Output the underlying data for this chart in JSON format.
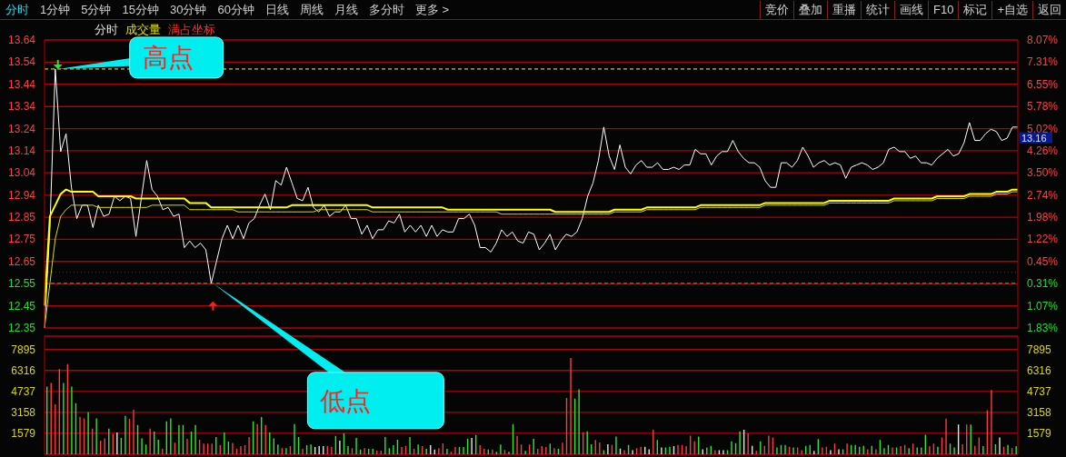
{
  "chart_data": [
    {
      "type": "other",
      "annotations": [
        "分时",
        "1分钟",
        "5分钟",
        "15分钟",
        "30分钟",
        "60分钟",
        "日线",
        "周线",
        "月线",
        "多分时",
        "更多 >"
      ]
    },
    {
      "type": "other",
      "annotations": [
        "竞价",
        "叠加",
        "重播",
        "统计",
        "画线",
        "F10",
        "标记",
        "+自选",
        "返回"
      ]
    },
    {
      "type": "line",
      "title": "分时",
      "annotations": [
        "成交量",
        "满占坐标",
        "高点",
        "低点",
        "13.16"
      ],
      "categories": [
        null,
        null,
        null,
        null,
        null,
        null,
        null,
        null,
        null,
        null,
        null,
        null,
        null,
        null,
        null,
        null,
        null,
        null,
        null,
        null,
        null,
        null,
        null,
        null,
        null,
        null,
        null,
        null,
        null,
        null,
        null,
        null,
        null,
        null,
        null,
        null,
        null,
        null,
        null,
        null,
        null,
        null,
        null,
        null,
        null,
        null,
        null,
        null,
        null,
        null,
        null,
        null,
        null,
        null,
        null,
        null,
        null,
        null,
        null,
        null,
        null,
        null,
        null,
        null,
        null,
        null,
        null,
        null,
        null,
        null,
        null,
        null,
        null,
        null,
        null,
        null,
        null,
        null,
        null,
        null,
        null,
        null,
        null,
        null,
        null,
        null,
        null,
        null,
        null,
        null,
        null,
        null,
        null,
        null,
        null,
        null,
        null,
        null,
        null,
        null,
        null,
        null,
        null,
        null,
        null,
        null,
        null,
        null,
        null,
        null,
        null,
        null,
        null,
        null,
        null,
        null,
        null,
        null,
        null,
        null,
        null,
        null,
        null,
        null,
        null,
        null,
        null,
        null,
        null,
        null,
        null,
        null,
        null,
        null,
        null,
        null,
        null,
        null,
        null,
        null,
        null,
        null,
        null,
        null,
        null,
        null,
        null,
        null,
        null,
        null,
        null,
        null,
        null,
        null,
        null,
        null,
        null,
        null,
        null,
        null,
        null,
        null,
        null,
        null,
        null,
        null,
        null,
        null,
        null,
        null,
        null,
        null,
        null,
        null,
        null,
        null,
        null,
        null,
        null,
        null,
        null,
        null
      ],
      "series": [
        {
          "type": "line",
          "color": "#ffffff",
          "values": [
            12.35,
            12.8,
            13.51,
            13.14,
            13.22,
            12.98,
            12.84,
            12.9,
            12.9,
            12.8,
            12.9,
            12.85,
            12.86,
            12.94,
            12.92,
            12.94,
            12.93,
            12.76,
            12.93,
            13.1,
            12.97,
            12.94,
            12.88,
            12.89,
            12.85,
            12.86,
            12.71,
            12.74,
            12.71,
            12.73,
            12.7,
            12.55,
            12.65,
            12.75,
            12.81,
            12.75,
            12.81,
            12.75,
            12.82,
            12.84,
            12.9,
            12.95,
            12.88,
            13.01,
            12.99,
            13.07,
            13.0,
            12.93,
            12.92,
            12.98,
            12.89,
            12.87,
            12.9,
            12.85,
            12.87,
            12.87,
            12.9,
            12.84,
            12.84,
            12.77,
            12.81,
            12.75,
            12.79,
            12.79,
            12.83,
            12.82,
            12.86,
            12.78,
            12.81,
            12.78,
            12.81,
            12.76,
            12.81,
            12.76,
            12.79,
            12.78,
            12.78,
            12.84,
            12.84,
            12.86,
            12.81,
            12.71,
            12.71,
            12.69,
            12.73,
            12.79,
            12.76,
            12.78,
            12.74,
            12.73,
            12.78,
            12.77,
            12.7,
            12.73,
            12.77,
            12.7,
            12.74,
            12.77,
            12.76,
            12.78,
            12.84,
            12.94,
            13.0,
            13.1,
            13.25,
            13.12,
            13.06,
            13.17,
            13.07,
            13.04,
            13.08,
            13.1,
            13.07,
            13.07,
            13.09,
            13.06,
            13.06,
            13.07,
            13.06,
            13.08,
            13.08,
            13.15,
            13.13,
            13.13,
            13.08,
            13.12,
            13.14,
            13.14,
            13.19,
            13.14,
            13.11,
            13.09,
            13.09,
            13.07,
            13.01,
            12.98,
            12.98,
            13.09,
            13.09,
            13.07,
            13.1,
            13.16,
            13.12,
            13.07,
            13.09,
            13.1,
            13.08,
            13.09,
            13.08,
            13.02,
            13.07,
            13.08,
            13.09,
            13.08,
            13.06,
            13.07,
            13.09,
            13.15,
            13.16,
            13.14,
            13.14,
            13.11,
            13.12,
            13.09,
            13.09,
            13.08,
            13.11,
            13.13,
            13.15,
            13.12,
            13.13,
            13.18,
            13.27,
            13.19,
            13.19,
            13.22,
            13.24,
            13.23,
            13.19,
            13.2,
            13.25,
            13.25
          ]
        },
        {
          "type": "line",
          "color": "#ffff00",
          "values": [
            12.45,
            12.85,
            12.9,
            12.95,
            12.97,
            12.96,
            12.96,
            12.96,
            12.96,
            12.96,
            12.94,
            12.94,
            12.94,
            12.94,
            12.94,
            12.94,
            12.94,
            12.93,
            12.93,
            12.93,
            12.93,
            12.93,
            12.93,
            12.93,
            12.93,
            12.93,
            12.93,
            12.91,
            12.91,
            12.91,
            12.91,
            12.89,
            12.89,
            12.89,
            12.89,
            12.89,
            12.89,
            12.89,
            12.89,
            12.89,
            12.89,
            12.89,
            12.89,
            12.89,
            12.89,
            12.89,
            12.9,
            12.9,
            12.9,
            12.9,
            12.9,
            12.9,
            12.9,
            12.9,
            12.9,
            12.9,
            12.9,
            12.9,
            12.9,
            12.9,
            12.9,
            12.89,
            12.89,
            12.89,
            12.89,
            12.89,
            12.89,
            12.89,
            12.89,
            12.89,
            12.89,
            12.89,
            12.89,
            12.89,
            12.89,
            12.88,
            12.88,
            12.88,
            12.88,
            12.88,
            12.88,
            12.88,
            12.88,
            12.88,
            12.88,
            12.88,
            12.88,
            12.88,
            12.88,
            12.88,
            12.88,
            12.88,
            12.88,
            12.88,
            12.88,
            12.87,
            12.87,
            12.87,
            12.87,
            12.87,
            12.87,
            12.87,
            12.87,
            12.87,
            12.87,
            12.87,
            12.88,
            12.88,
            12.88,
            12.88,
            12.88,
            12.88,
            12.89,
            12.89,
            12.89,
            12.89,
            12.89,
            12.89,
            12.89,
            12.89,
            12.89,
            12.89,
            12.9,
            12.9,
            12.9,
            12.9,
            12.9,
            12.9,
            12.9,
            12.9,
            12.9,
            12.9,
            12.9,
            12.9,
            12.91,
            12.91,
            12.91,
            12.91,
            12.91,
            12.91,
            12.91,
            12.91,
            12.91,
            12.91,
            12.91,
            12.91,
            12.92,
            12.92,
            12.92,
            12.92,
            12.92,
            12.92,
            12.92,
            12.92,
            12.92,
            12.92,
            12.92,
            12.92,
            12.93,
            12.93,
            12.93,
            12.93,
            12.93,
            12.93,
            12.93,
            12.93,
            12.94,
            12.94,
            12.94,
            12.94,
            12.94,
            12.94,
            12.95,
            12.95,
            12.95,
            12.95,
            12.95,
            12.96,
            12.96,
            12.96,
            12.97,
            12.97
          ]
        },
        {
          "type": "line",
          "color": "#dddd00",
          "values": [
            12.35,
            12.55,
            12.75,
            12.85,
            12.88,
            12.9,
            12.9,
            12.9,
            12.9,
            12.9,
            12.89,
            12.89,
            12.89,
            12.89,
            12.89,
            12.89,
            12.89,
            12.89,
            12.89,
            12.89,
            12.9,
            12.9,
            12.9,
            12.9,
            12.9,
            12.9,
            12.9,
            12.88,
            12.88,
            12.88,
            12.88,
            12.88,
            12.88,
            12.88,
            12.88,
            12.88,
            12.87,
            12.87,
            12.87,
            12.87,
            12.87,
            12.87,
            12.87,
            12.87,
            12.87,
            12.87,
            12.87,
            12.87,
            12.87,
            12.87,
            12.87,
            12.88,
            12.88,
            12.88,
            12.88,
            12.88,
            12.88,
            12.88,
            12.88,
            12.88,
            12.88,
            12.87,
            12.87,
            12.87,
            12.87,
            12.87,
            12.87,
            12.87,
            12.87,
            12.87,
            12.87,
            12.87,
            12.87,
            12.87,
            12.87,
            12.87,
            12.87,
            12.87,
            12.87,
            12.87,
            12.87,
            12.87,
            12.87,
            12.87,
            12.87,
            12.86,
            12.86,
            12.86,
            12.86,
            12.86,
            12.86,
            12.86,
            12.86,
            12.86,
            12.86,
            12.86,
            12.86,
            12.86,
            12.86,
            12.86,
            12.86,
            12.86,
            12.86,
            12.86,
            12.86,
            12.86,
            12.87,
            12.87,
            12.87,
            12.87,
            12.87,
            12.87,
            12.88,
            12.88,
            12.88,
            12.88,
            12.88,
            12.88,
            12.88,
            12.88,
            12.88,
            12.88,
            12.89,
            12.89,
            12.89,
            12.89,
            12.89,
            12.89,
            12.89,
            12.89,
            12.89,
            12.89,
            12.89,
            12.89,
            12.9,
            12.9,
            12.9,
            12.9,
            12.9,
            12.9,
            12.9,
            12.9,
            12.9,
            12.9,
            12.9,
            12.9,
            12.91,
            12.91,
            12.91,
            12.91,
            12.91,
            12.91,
            12.91,
            12.91,
            12.91,
            12.91,
            12.91,
            12.91,
            12.92,
            12.92,
            12.92,
            12.92,
            12.92,
            12.92,
            12.92,
            12.92,
            12.93,
            12.93,
            12.93,
            12.93,
            12.93,
            12.93,
            12.94,
            12.94,
            12.94,
            12.94,
            12.94,
            12.95,
            12.95,
            12.95,
            12.96,
            12.96
          ]
        }
      ],
      "ylim": [
        12.35,
        13.64
      ],
      "yticks": [
        {
          "value": 12.35,
          "label": "12.35"
        },
        {
          "value": 12.449,
          "label": "12.45"
        },
        {
          "value": 12.548,
          "label": "12.55"
        },
        {
          "value": 12.648,
          "label": "12.65"
        },
        {
          "value": 12.747,
          "label": "12.75"
        },
        {
          "value": 12.846,
          "label": "12.85"
        },
        {
          "value": 12.945,
          "label": "12.94"
        },
        {
          "value": 13.045,
          "label": "13.04"
        },
        {
          "value": 13.144,
          "label": "13.14"
        },
        {
          "value": 13.243,
          "label": "13.24"
        },
        {
          "value": 13.342,
          "label": "13.34"
        },
        {
          "value": 13.442,
          "label": "13.44"
        },
        {
          "value": 13.541,
          "label": "13.54"
        },
        {
          "value": 13.64,
          "label": "13.64"
        }
      ],
      "y2lim": [
        -1.83,
        8.07
      ],
      "y2ticks": [
        {
          "value": -1.83,
          "label": "1.83%"
        },
        {
          "value": -1.07,
          "label": "1.07%"
        },
        {
          "value": -0.31,
          "label": "0.31%"
        },
        {
          "value": 0.45,
          "label": "0.45%"
        },
        {
          "value": 1.22,
          "label": "1.22%"
        },
        {
          "value": 1.98,
          "label": "1.98%"
        },
        {
          "value": 2.74,
          "label": "2.74%"
        },
        {
          "value": 3.5,
          "label": "3.50%"
        },
        {
          "value": 4.26,
          "label": "4.26%"
        },
        {
          "value": 5.02,
          "label": "5.02%"
        },
        {
          "value": 5.78,
          "label": "5.78%"
        },
        {
          "value": 6.55,
          "label": "6.55%"
        },
        {
          "value": 7.31,
          "label": "7.31%"
        },
        {
          "value": 8.07,
          "label": "8.07%"
        }
      ],
      "ref_lines": [
        {
          "axis": "y",
          "value": 13.51,
          "color": "#ffff00",
          "line_style": "dashed"
        },
        {
          "axis": "y",
          "value": 12.55,
          "color": "#00e000",
          "line_style": "dashed"
        },
        {
          "axis": "y",
          "value": 12.6,
          "color": "#c00000",
          "line_style": "dotted"
        }
      ],
      "grid": "y",
      "tick_labels": "y"
    },
    {
      "type": "bar",
      "categories": [
        null,
        null,
        null,
        null,
        null,
        null,
        null,
        null,
        null,
        null,
        null,
        null,
        null,
        null,
        null,
        null,
        null,
        null,
        null,
        null,
        null,
        null,
        null,
        null,
        null,
        null,
        null,
        null,
        null,
        null,
        null,
        null,
        null,
        null,
        null,
        null,
        null,
        null,
        null,
        null,
        null,
        null,
        null,
        null,
        null,
        null,
        null,
        null,
        null,
        null,
        null,
        null,
        null,
        null,
        null,
        null,
        null,
        null,
        null,
        null,
        null,
        null,
        null,
        null,
        null,
        null,
        null,
        null,
        null,
        null,
        null,
        null,
        null,
        null,
        null,
        null,
        null,
        null,
        null,
        null,
        null,
        null,
        null,
        null,
        null,
        null,
        null,
        null,
        null,
        null,
        null,
        null,
        null,
        null,
        null,
        null,
        null,
        null,
        null,
        null,
        null,
        null,
        null,
        null,
        null,
        null,
        null,
        null,
        null,
        null,
        null,
        null,
        null,
        null,
        null,
        null,
        null,
        null,
        null,
        null,
        null,
        null,
        null,
        null,
        null,
        null,
        null,
        null,
        null,
        null,
        null,
        null,
        null,
        null,
        null,
        null,
        null,
        null,
        null,
        null,
        null,
        null,
        null,
        null,
        null,
        null,
        null,
        null,
        null,
        null,
        null,
        null,
        null,
        null,
        null,
        null,
        null,
        null,
        null,
        null,
        null,
        null,
        null,
        null,
        null,
        null,
        null,
        null,
        null,
        null,
        null,
        null,
        null,
        null,
        null,
        null,
        null,
        null,
        null,
        null,
        null,
        null,
        null,
        null,
        null,
        null,
        null,
        null,
        null,
        null,
        null,
        null,
        null,
        null,
        null,
        null,
        null,
        null,
        null,
        null,
        null,
        null,
        null,
        null,
        null,
        null,
        null,
        null,
        null,
        null,
        null,
        null,
        null,
        null,
        null,
        null,
        null,
        null,
        null,
        null,
        null,
        null,
        null,
        null,
        null,
        null,
        null,
        null,
        null,
        null,
        null,
        null,
        null,
        null,
        null,
        null
      ],
      "values": [
        5100,
        5370,
        3770,
        6410,
        5370,
        6800,
        5100,
        3850,
        2830,
        2700,
        3160,
        1930,
        2700,
        1020,
        1190,
        1930,
        1520,
        1650,
        1240,
        2890,
        2670,
        3350,
        2200,
        1190,
        740,
        1930,
        1710,
        1100,
        410,
        2480,
        2700,
        880,
        2200,
        2200,
        1160,
        1710,
        2200,
        1100,
        800,
        800,
        800,
        1300,
        690,
        1650,
        960,
        850,
        410,
        610,
        690,
        1300,
        2480,
        2280,
        2800,
        2200,
        1650,
        1190,
        740,
        470,
        470,
        610,
        2280,
        1300,
        410,
        690,
        740,
        550,
        610,
        610,
        610,
        550,
        1380,
        1020,
        1570,
        610,
        470,
        1240,
        360,
        470,
        410,
        410,
        280,
        280,
        1300,
        470,
        690,
        1100,
        550,
        630,
        1300,
        410,
        740,
        610,
        410,
        690,
        360,
        470,
        820,
        410,
        190,
        550,
        550,
        550,
        1160,
        1240,
        1460,
        690,
        410,
        360,
        360,
        190,
        740,
        330,
        190,
        2280,
        1380,
        740,
        250,
        740,
        1160,
        410,
        610,
        550,
        800,
        470,
        410,
        880,
        4250,
        7260,
        4200,
        4890,
        1660,
        1730,
        760,
        1070,
        890,
        310,
        760,
        710,
        1330,
        430,
        310,
        710,
        310,
        460,
        560,
        560,
        380,
        1840,
        1070,
        510,
        510,
        560,
        610,
        710,
        710,
        610,
        1400,
        970,
        1330,
        380,
        510,
        640,
        310,
        310,
        310,
        310,
        970,
        840,
        1730,
        1840,
        1580,
        640,
        260,
        970,
        640,
        1400,
        1270,
        510,
        710,
        710,
        560,
        510,
        510,
        310,
        640,
        710,
        260,
        1150,
        510,
        560,
        310,
        810,
        380,
        380,
        810,
        710,
        710,
        560,
        640,
        380,
        640,
        380,
        1070,
        460,
        710,
        510,
        510,
        610,
        710,
        460,
        810,
        510,
        510,
        1480,
        610,
        810,
        560,
        1270,
        2680,
        810,
        510,
        2240,
        760,
        2240,
        2240,
        640,
        1270,
        610,
        3320,
        4850,
        760,
        1270,
        560,
        710,
        460,
        610
      ],
      "colors": [
        "#2ee82e",
        "#ff3c3c",
        "#ff3c3c",
        "#ff3c3c",
        "#2ee82e",
        "#ff3c3c",
        "#2ee82e",
        "#2ee82e",
        "#ff3c3c",
        "#ff3c3c",
        "#2ee82e",
        "#ff3c3c",
        "#2ee82e",
        "#ff3c3c",
        "#ff3c3c",
        "#2ee82e",
        "#ff3c3c",
        "#e6e6e6",
        "#2ee82e",
        "#2ee82e",
        "#ff3c3c",
        "#ff3c3c",
        "#2ee82e",
        "#2ee82e",
        "#2ee82e",
        "#ff3c3c",
        "#2ee82e",
        "#2ee82e",
        "#ff3c3c",
        "#2ee82e",
        "#2ee82e",
        "#ff3c3c",
        "#2ee82e",
        "#2ee82e",
        "#ff3c3c",
        "#2ee82e",
        "#2ee82e",
        "#ff3c3c",
        "#ff3c3c",
        "#ff3c3c",
        "#ff3c3c",
        "#2ee82e",
        "#ff3c3c",
        "#2ee82e",
        "#2ee82e",
        "#ff3c3c",
        "#ff3c3c",
        "#ff3c3c",
        "#ff3c3c",
        "#ff3c3c",
        "#2ee82e",
        "#ff3c3c",
        "#2ee82e",
        "#ff3c3c",
        "#2ee82e",
        "#2ee82e",
        "#2ee82e",
        "#ff3c3c",
        "#2ee82e",
        "#ff3c3c",
        "#2ee82e",
        "#2ee82e",
        "#ff3c3c",
        "#2ee82e",
        "#2ee82e",
        "#e6e6e6",
        "#e6e6e6",
        "#e6e6e6",
        "#ff3c3c",
        "#ff3c3c",
        "#2ee82e",
        "#e6e6e6",
        "#2ee82e",
        "#2ee82e",
        "#ff3c3c",
        "#2ee82e",
        "#2ee82e",
        "#ff3c3c",
        "#2ee82e",
        "#2ee82e",
        "#ff3c3c",
        "#ff3c3c",
        "#2ee82e",
        "#2ee82e",
        "#2ee82e",
        "#2ee82e",
        "#ff3c3c",
        "#ff3c3c",
        "#2ee82e",
        "#ff3c3c",
        "#2ee82e",
        "#ff3c3c",
        "#2ee82e",
        "#e6e6e6",
        "#e6e6e6",
        "#ff3c3c",
        "#ff3c3c",
        "#2ee82e",
        "#ff3c3c",
        "#ff3c3c",
        "#2ee82e",
        "#2ee82e",
        "#2ee82e",
        "#e6e6e6",
        "#2ee82e",
        "#ff3c3c",
        "#ff3c3c",
        "#2ee82e",
        "#ff3c3c",
        "#2ee82e",
        "#2ee82e",
        "#ff3c3c",
        "#2ee82e",
        "#2ee82e",
        "#ff3c3c",
        "#ff3c3c",
        "#2ee82e",
        "#ff3c3c",
        "#2ee82e",
        "#ff3c3c",
        "#ff3c3c",
        "#ff3c3c",
        "#2ee82e",
        "#ff3c3c",
        "#2ee82e",
        "#ff3c3c",
        "#ff3c3c",
        "#ff3c3c",
        "#2ee82e",
        "#2ee82e",
        "#ff3c3c",
        "#2ee82e",
        "#2ee82e",
        "#ff3c3c",
        "#ff3c3c",
        "#2ee82e",
        "#e6e6e6",
        "#ff3c3c",
        "#2ee82e",
        "#e6e6e6",
        "#ff3c3c",
        "#2ee82e",
        "#e6e6e6",
        "#ff3c3c",
        "#ff3c3c",
        "#e6e6e6",
        "#e6e6e6",
        "#ff3c3c",
        "#2ee82e",
        "#e6e6e6",
        "#2ee82e",
        "#2ee82e",
        "#e6e6e6",
        "#ff3c3c",
        "#ff3c3c",
        "#ff3c3c",
        "#ff3c3c",
        "#ff3c3c",
        "#2ee82e",
        "#e6e6e6",
        "#2ee82e",
        "#2ee82e",
        "#ff3c3c",
        "#e6e6e6",
        "#e6e6e6",
        "#2ee82e",
        "#2ee82e",
        "#2ee82e",
        "#2ee82e",
        "#e6e6e6",
        "#ff3c3c",
        "#e6e6e6",
        "#ff3c3c",
        "#2ee82e",
        "#ff3c3c",
        "#ff3c3c",
        "#ff3c3c",
        "#2ee82e",
        "#2ee82e",
        "#2ee82e",
        "#ff3c3c",
        "#2ee82e",
        "#ff3c3c",
        "#ff3c3c",
        "#2ee82e",
        "#2ee82e",
        "#e6e6e6",
        "#2ee82e",
        "#ff3c3c",
        "#ff3c3c",
        "#e6e6e6",
        "#ff3c3c",
        "#e6e6e6",
        "#2ee82e",
        "#ff3c3c",
        "#2ee82e",
        "#2ee82e",
        "#2ee82e",
        "#2ee82e",
        "#ff3c3c",
        "#2ee82e",
        "#ff3c3c",
        "#2ee82e",
        "#2ee82e",
        "#2ee82e",
        "#ff3c3c",
        "#2ee82e",
        "#ff3c3c",
        "#ff3c3c",
        "#2ee82e",
        "#ff3c3c",
        "#2ee82e",
        "#2ee82e",
        "#2ee82e",
        "#ff3c3c",
        "#ff3c3c",
        "#2ee82e",
        "#ff3c3c",
        "#ff3c3c",
        "#2ee82e",
        "#2ee82e",
        "#e6e6e6",
        "#ff3c3c",
        "#ff3c3c",
        "#2ee82e",
        "#ff3c3c",
        "#ff3c3c",
        "#2ee82e",
        "#ff3c3c",
        "#ff3c3c",
        "#2ee82e",
        "#e6e6e6",
        "#ff3c3c",
        "#2ee82e",
        "#ff3c3c",
        "#2ee82e"
      ],
      "ylim": [
        0,
        8900
      ],
      "yticks": [
        1579,
        3158,
        4737,
        6316,
        7895
      ],
      "y2lim": [
        0,
        8900
      ],
      "y2ticks": [
        1579,
        3158,
        4737,
        6316,
        7895
      ],
      "grid": "y",
      "tick_labels": "y"
    }
  ]
}
